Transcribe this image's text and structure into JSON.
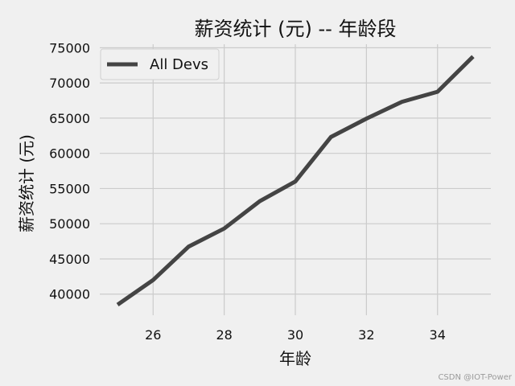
{
  "chart_data": {
    "type": "line",
    "title": "薪资统计 (元) -- 年龄段",
    "xlabel": "年龄",
    "ylabel": "薪资统计 (元)",
    "xlim": [
      24.5,
      35.5
    ],
    "ylim": [
      37000,
      75500
    ],
    "x_ticks": [
      26,
      28,
      30,
      32,
      34
    ],
    "y_ticks": [
      40000,
      45000,
      50000,
      55000,
      60000,
      65000,
      70000,
      75000
    ],
    "grid": true,
    "legend_position": "top-left",
    "series": [
      {
        "name": "All Devs",
        "color": "#444444",
        "x": [
          25,
          26,
          27,
          28,
          29,
          30,
          31,
          32,
          33,
          34,
          35
        ],
        "values": [
          38496,
          42000,
          46752,
          49320,
          53200,
          56000,
          62316,
          64928,
          67317,
          68748,
          73752
        ]
      }
    ]
  },
  "watermark": "CSDN @IOT-Power"
}
